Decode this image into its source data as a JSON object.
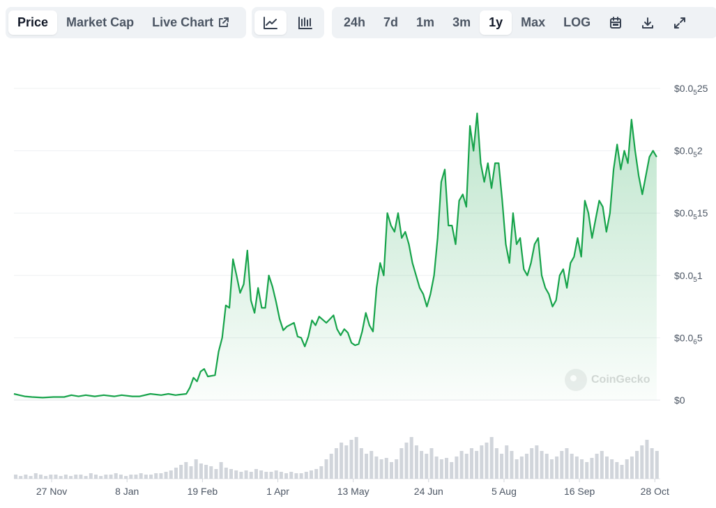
{
  "tabs": [
    {
      "label": "Price",
      "active": true
    },
    {
      "label": "Market Cap",
      "active": false
    },
    {
      "label": "Live Chart",
      "active": false
    }
  ],
  "chart_types": [
    {
      "icon": "line-chart-icon",
      "active": true
    },
    {
      "icon": "candlestick-chart-icon",
      "active": false
    }
  ],
  "ranges": [
    {
      "label": "24h",
      "active": false
    },
    {
      "label": "7d",
      "active": false
    },
    {
      "label": "1m",
      "active": false
    },
    {
      "label": "3m",
      "active": false
    },
    {
      "label": "1y",
      "active": true
    },
    {
      "label": "Max",
      "active": false
    },
    {
      "label": "LOG",
      "active": false
    }
  ],
  "toolbar_icons": [
    "calendar-icon",
    "download-icon",
    "expand-icon"
  ],
  "watermark": "CoinGecko",
  "colors": {
    "line": "#16a34a",
    "fill": "#16a34a",
    "volume": "#d1d5db",
    "grid": "#eef0f2",
    "active_bg": "#ffffff",
    "group_bg": "#eff2f5"
  },
  "chart_data": {
    "type": "line",
    "title": "",
    "xlabel": "",
    "ylabel": "",
    "ylim": [
      0,
      2.5e-06
    ],
    "y_ticks": [
      {
        "value": 0,
        "prefix": "$0",
        "sub": "",
        "suffix": ""
      },
      {
        "value": 5e-07,
        "prefix": "$0.0",
        "sub": "6",
        "suffix": "5"
      },
      {
        "value": 1e-06,
        "prefix": "$0.0",
        "sub": "5",
        "suffix": "1"
      },
      {
        "value": 1.5e-06,
        "prefix": "$0.0",
        "sub": "5",
        "suffix": "15"
      },
      {
        "value": 2e-06,
        "prefix": "$0.0",
        "sub": "5",
        "suffix": "2"
      },
      {
        "value": 2.5e-06,
        "prefix": "$0.0",
        "sub": "5",
        "suffix": "25"
      }
    ],
    "x_ticks": [
      "27 Nov",
      "8 Jan",
      "19 Feb",
      "1 Apr",
      "13 May",
      "24 Jun",
      "5 Aug",
      "16 Sep",
      "28 Oct"
    ],
    "x_tick_days": [
      21,
      63,
      105,
      147,
      189,
      231,
      273,
      315,
      357
    ],
    "x_range_days": [
      0,
      360
    ],
    "x_unit": "days from series start (approx. 6 Nov)",
    "series": [
      {
        "values": [
          [
            0,
            5e-08
          ],
          [
            3,
            4e-08
          ],
          [
            6,
            3e-08
          ],
          [
            10,
            2.5e-08
          ],
          [
            16,
            2e-08
          ],
          [
            22,
            2.5e-08
          ],
          [
            28,
            2.5e-08
          ],
          [
            32,
            4e-08
          ],
          [
            36,
            3e-08
          ],
          [
            40,
            4e-08
          ],
          [
            45,
            3e-08
          ],
          [
            50,
            4e-08
          ],
          [
            56,
            3e-08
          ],
          [
            60,
            4e-08
          ],
          [
            66,
            3e-08
          ],
          [
            70,
            3e-08
          ],
          [
            76,
            5e-08
          ],
          [
            82,
            4e-08
          ],
          [
            86,
            5e-08
          ],
          [
            90,
            4e-08
          ],
          [
            96,
            5e-08
          ],
          [
            98,
            1e-07
          ],
          [
            100,
            1.8e-07
          ],
          [
            102,
            1.5e-07
          ],
          [
            104,
            2.3e-07
          ],
          [
            106,
            2.5e-07
          ],
          [
            108,
            1.9e-07
          ],
          [
            112,
            2e-07
          ],
          [
            114,
            3.9e-07
          ],
          [
            116,
            5e-07
          ],
          [
            118,
            7.6e-07
          ],
          [
            120,
            7.4e-07
          ],
          [
            122,
            1.13e-06
          ],
          [
            124,
            1e-06
          ],
          [
            126,
            8.6e-07
          ],
          [
            128,
            9.3e-07
          ],
          [
            130,
            1.2e-06
          ],
          [
            132,
            8e-07
          ],
          [
            134,
            7e-07
          ],
          [
            136,
            9e-07
          ],
          [
            138,
            7.4e-07
          ],
          [
            140,
            7.4e-07
          ],
          [
            142,
            1e-06
          ],
          [
            144,
            9.1e-07
          ],
          [
            146,
            7.9e-07
          ],
          [
            148,
            6.5e-07
          ],
          [
            150,
            5.6e-07
          ],
          [
            152,
            5.9e-07
          ],
          [
            156,
            6.2e-07
          ],
          [
            158,
            5.1e-07
          ],
          [
            160,
            5e-07
          ],
          [
            162,
            4.3e-07
          ],
          [
            164,
            5.1e-07
          ],
          [
            166,
            6.4e-07
          ],
          [
            168,
            6e-07
          ],
          [
            170,
            6.7e-07
          ],
          [
            174,
            6.2e-07
          ],
          [
            178,
            6.8e-07
          ],
          [
            180,
            5.7e-07
          ],
          [
            182,
            5.2e-07
          ],
          [
            184,
            5.7e-07
          ],
          [
            186,
            5.4e-07
          ],
          [
            188,
            4.6e-07
          ],
          [
            190,
            4.4e-07
          ],
          [
            192,
            4.5e-07
          ],
          [
            194,
            5.5e-07
          ],
          [
            196,
            7e-07
          ],
          [
            198,
            6e-07
          ],
          [
            200,
            5.5e-07
          ],
          [
            202,
            9e-07
          ],
          [
            204,
            1.1e-06
          ],
          [
            206,
            1e-06
          ],
          [
            208,
            1.5e-06
          ],
          [
            210,
            1.4e-06
          ],
          [
            212,
            1.35e-06
          ],
          [
            214,
            1.5e-06
          ],
          [
            216,
            1.3e-06
          ],
          [
            218,
            1.35e-06
          ],
          [
            220,
            1.25e-06
          ],
          [
            222,
            1.1e-06
          ],
          [
            224,
            1e-06
          ],
          [
            226,
            9e-07
          ],
          [
            228,
            8.5e-07
          ],
          [
            230,
            7.5e-07
          ],
          [
            232,
            8.5e-07
          ],
          [
            234,
            1e-06
          ],
          [
            236,
            1.3e-06
          ],
          [
            238,
            1.75e-06
          ],
          [
            240,
            1.85e-06
          ],
          [
            242,
            1.4e-06
          ],
          [
            244,
            1.4e-06
          ],
          [
            246,
            1.25e-06
          ],
          [
            248,
            1.6e-06
          ],
          [
            250,
            1.65e-06
          ],
          [
            252,
            1.55e-06
          ],
          [
            254,
            2.2e-06
          ],
          [
            256,
            2e-06
          ],
          [
            258,
            2.3e-06
          ],
          [
            260,
            1.9e-06
          ],
          [
            262,
            1.75e-06
          ],
          [
            264,
            1.9e-06
          ],
          [
            266,
            1.7e-06
          ],
          [
            268,
            1.9e-06
          ],
          [
            270,
            1.9e-06
          ],
          [
            272,
            1.6e-06
          ],
          [
            274,
            1.25e-06
          ],
          [
            276,
            1.1e-06
          ],
          [
            278,
            1.5e-06
          ],
          [
            280,
            1.25e-06
          ],
          [
            282,
            1.3e-06
          ],
          [
            284,
            1.05e-06
          ],
          [
            286,
            1e-06
          ],
          [
            288,
            1.1e-06
          ],
          [
            290,
            1.25e-06
          ],
          [
            292,
            1.3e-06
          ],
          [
            294,
            1e-06
          ],
          [
            296,
            9e-07
          ],
          [
            298,
            8.5e-07
          ],
          [
            300,
            7.5e-07
          ],
          [
            302,
            8e-07
          ],
          [
            304,
            1e-06
          ],
          [
            306,
            1.05e-06
          ],
          [
            308,
            9e-07
          ],
          [
            310,
            1.1e-06
          ],
          [
            312,
            1.15e-06
          ],
          [
            314,
            1.3e-06
          ],
          [
            316,
            1.15e-06
          ],
          [
            318,
            1.6e-06
          ],
          [
            320,
            1.5e-06
          ],
          [
            322,
            1.3e-06
          ],
          [
            324,
            1.45e-06
          ],
          [
            326,
            1.6e-06
          ],
          [
            328,
            1.55e-06
          ],
          [
            330,
            1.35e-06
          ],
          [
            332,
            1.5e-06
          ],
          [
            334,
            1.85e-06
          ],
          [
            336,
            2.05e-06
          ],
          [
            338,
            1.85e-06
          ],
          [
            340,
            2e-06
          ],
          [
            342,
            1.9e-06
          ],
          [
            344,
            2.25e-06
          ],
          [
            346,
            2e-06
          ],
          [
            348,
            1.8e-06
          ],
          [
            350,
            1.65e-06
          ],
          [
            352,
            1.8e-06
          ],
          [
            354,
            1.95e-06
          ],
          [
            356,
            2e-06
          ],
          [
            358,
            1.95e-06
          ]
        ]
      }
    ],
    "volume": [
      3,
      2,
      3,
      2,
      4,
      3,
      2,
      3,
      3,
      2,
      3,
      2,
      3,
      3,
      2,
      4,
      3,
      2,
      3,
      3,
      4,
      3,
      2,
      3,
      3,
      4,
      3,
      3,
      4,
      4,
      5,
      6,
      8,
      10,
      12,
      9,
      14,
      11,
      10,
      9,
      7,
      12,
      8,
      7,
      6,
      5,
      6,
      5,
      7,
      6,
      5,
      5,
      6,
      5,
      4,
      5,
      4,
      4,
      5,
      6,
      7,
      9,
      14,
      18,
      22,
      26,
      24,
      28,
      30,
      22,
      18,
      20,
      16,
      14,
      15,
      12,
      14,
      22,
      26,
      30,
      24,
      20,
      18,
      22,
      16,
      14,
      15,
      12,
      16,
      20,
      18,
      22,
      20,
      24,
      26,
      30,
      22,
      18,
      24,
      20,
      14,
      16,
      18,
      22,
      24,
      20,
      18,
      14,
      16,
      20,
      22,
      18,
      16,
      14,
      12,
      15,
      18,
      20,
      16,
      14,
      12,
      10,
      14,
      16,
      20,
      24,
      28,
      22,
      20
    ]
  }
}
